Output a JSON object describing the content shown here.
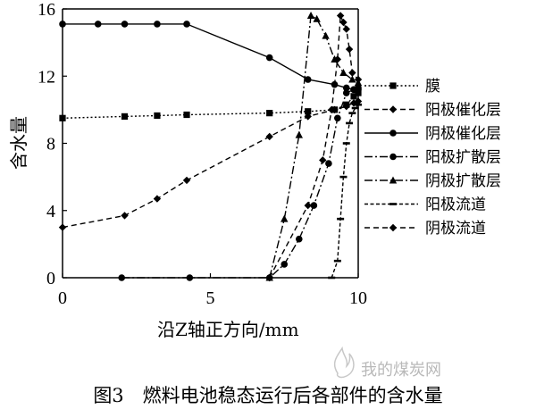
{
  "chart_data": {
    "type": "line",
    "title": "",
    "xlabel": "沿Z轴正方向/mm",
    "ylabel": "含水量",
    "xlim": [
      0,
      10
    ],
    "ylim": [
      0,
      16
    ],
    "xticks": [
      "0",
      "5",
      "10"
    ],
    "yticks": [
      "0",
      "4",
      "8",
      "12",
      "16"
    ],
    "grid": false,
    "legend_position": "right",
    "series": [
      {
        "name": "膜",
        "style": "dotted",
        "marker": "square",
        "x": [
          0,
          2.1,
          3.2,
          4.2,
          7.0,
          8.3,
          9.2,
          9.6,
          9.85,
          10.0
        ],
        "y": [
          9.5,
          9.6,
          9.65,
          9.7,
          9.8,
          9.9,
          10.0,
          10.3,
          10.8,
          11.0
        ]
      },
      {
        "name": "阳极催化层",
        "style": "dashed",
        "marker": "diamond",
        "x": [
          0,
          2.1,
          3.2,
          4.2,
          7.0,
          8.3,
          9.2,
          9.6,
          9.85,
          10.0
        ],
        "y": [
          3.0,
          3.7,
          4.7,
          5.8,
          8.4,
          9.6,
          10.0,
          10.2,
          10.4,
          10.5
        ]
      },
      {
        "name": "阴极催化层",
        "style": "solid",
        "marker": "circle",
        "x": [
          0,
          1.2,
          2.1,
          3.2,
          4.2,
          7.0,
          8.3,
          9.2,
          9.6,
          9.85,
          10.0
        ],
        "y": [
          15.1,
          15.1,
          15.1,
          15.1,
          15.1,
          13.1,
          11.8,
          11.5,
          11.3,
          11.2,
          11.2
        ]
      },
      {
        "name": "阳极扩散层",
        "style": "dash-dot",
        "marker": "circle",
        "x": [
          2.0,
          4.3,
          7.0,
          7.5,
          8.0,
          8.5,
          9.0,
          9.3,
          9.6,
          9.85,
          10.0
        ],
        "y": [
          0,
          0,
          0,
          0.8,
          2.3,
          4.3,
          6.8,
          9.5,
          11.0,
          11.2,
          11.3
        ]
      },
      {
        "name": "阴极扩散层",
        "style": "dash-dot",
        "marker": "triangle",
        "x": [
          7.0,
          7.5,
          8.0,
          8.4,
          8.6,
          8.9,
          9.2,
          9.5,
          9.8,
          10.0
        ],
        "y": [
          0,
          3.5,
          8.5,
          15.6,
          15.4,
          14.4,
          13.0,
          12.2,
          11.8,
          11.6
        ]
      },
      {
        "name": "阳极流道",
        "style": "dense-dash",
        "marker": "dash",
        "x": [
          9.1,
          9.3,
          9.4,
          9.5,
          9.6,
          9.7,
          9.8,
          9.9,
          10.0
        ],
        "y": [
          0,
          1.0,
          3.5,
          6.0,
          8.0,
          9.2,
          9.8,
          10.1,
          10.3
        ]
      },
      {
        "name": "阴极流道",
        "style": "dashed",
        "marker": "diamond",
        "x": [
          7.0,
          8.3,
          8.8,
          9.1,
          9.3,
          9.4,
          9.5,
          9.6,
          9.7,
          9.8,
          10.0
        ],
        "y": [
          0,
          4.3,
          7.0,
          10.0,
          13.0,
          15.6,
          15.2,
          14.8,
          13.6,
          12.2,
          11.8
        ]
      }
    ]
  },
  "caption": "图3　燃料电池稳态运行后各部件的含水量",
  "watermark": "我的煤炭网"
}
